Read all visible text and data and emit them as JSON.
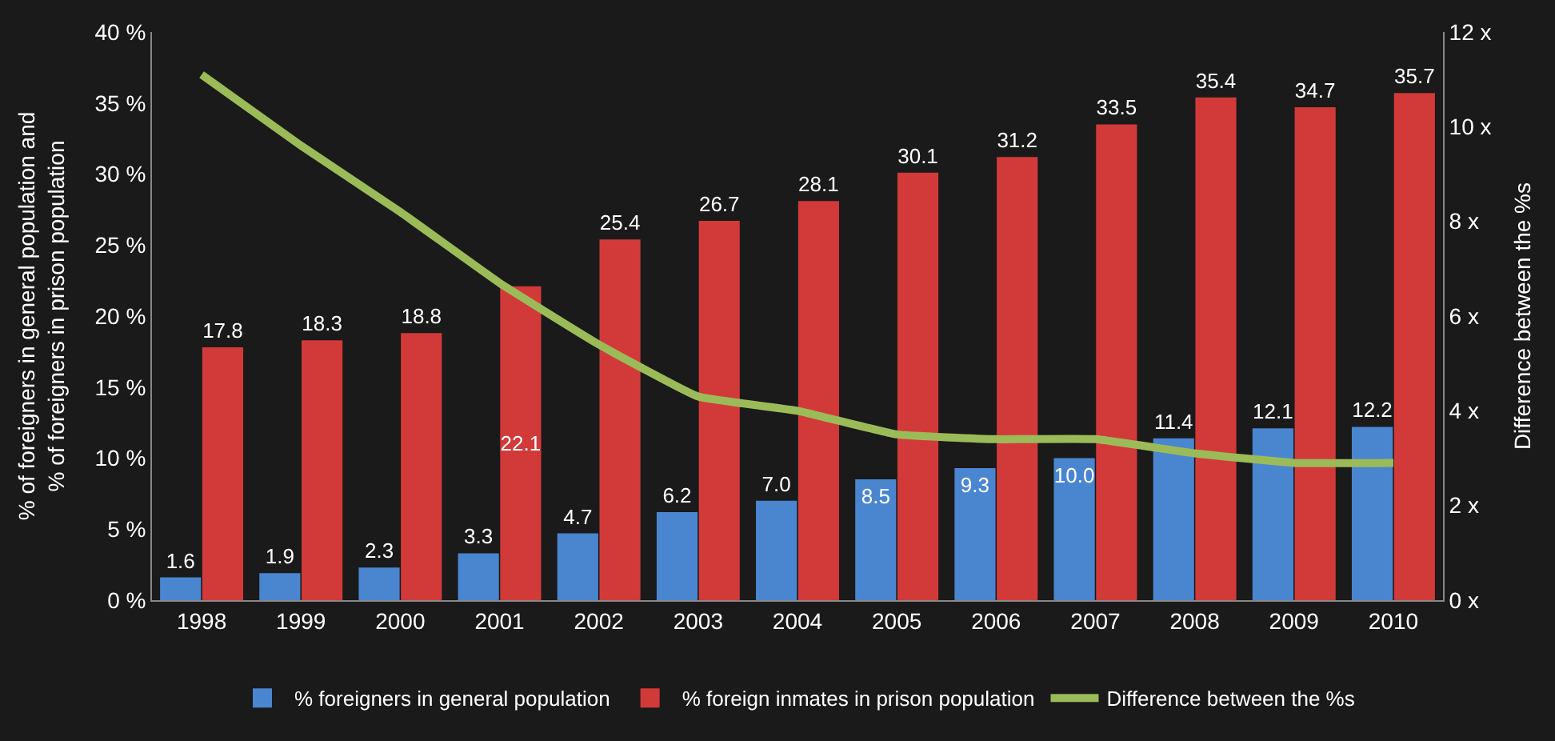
{
  "chart_data": {
    "type": "bar",
    "categories": [
      "1998",
      "1999",
      "2000",
      "2001",
      "2002",
      "2003",
      "2004",
      "2005",
      "2006",
      "2007",
      "2008",
      "2009",
      "2010"
    ],
    "ylabel": "% of foreigners in general population and\n% of foreigners in prison population",
    "y2label": "Difference between the %s",
    "ylim": [
      0,
      40
    ],
    "yticks": [
      {
        "value": 0,
        "label": "0 %"
      },
      {
        "value": 5,
        "label": "5 %"
      },
      {
        "value": 10,
        "label": "10 %"
      },
      {
        "value": 15,
        "label": "15 %"
      },
      {
        "value": 20,
        "label": "20 %"
      },
      {
        "value": 25,
        "label": "25 %"
      },
      {
        "value": 30,
        "label": "30 %"
      },
      {
        "value": 35,
        "label": "35 %"
      },
      {
        "value": 40,
        "label": "40 %"
      }
    ],
    "y2lim": [
      0,
      12
    ],
    "y2ticks": [
      {
        "value": 0,
        "label": "0 x"
      },
      {
        "value": 2,
        "label": "2 x"
      },
      {
        "value": 4,
        "label": "4 x"
      },
      {
        "value": 6,
        "label": "6 x"
      },
      {
        "value": 8,
        "label": "8 x"
      },
      {
        "value": 10,
        "label": "10 x"
      },
      {
        "value": 12,
        "label": "12 x"
      }
    ],
    "legend": "bottom",
    "grid": false,
    "series": [
      {
        "name": "% foreigners in general population",
        "color": "#4a86d0",
        "values": [
          1.6,
          1.9,
          2.3,
          3.3,
          4.7,
          6.2,
          7.0,
          8.5,
          9.3,
          10.0,
          11.4,
          12.1,
          12.2
        ],
        "value_labels": [
          "1.6",
          "1.9",
          "2.3",
          "3.3",
          "4.7",
          "6.2",
          "7.0",
          "8.5",
          "9.3",
          "10.0",
          "11.4",
          "12.1",
          "12.2"
        ]
      },
      {
        "name": "% foreign inmates in prison population",
        "color": "#d23a3a",
        "values": [
          17.8,
          18.3,
          18.8,
          22.1,
          25.4,
          26.7,
          28.1,
          30.1,
          31.2,
          33.5,
          35.4,
          34.7,
          35.7
        ],
        "value_labels": [
          "17.8",
          "18.3",
          "18.8",
          "22.1",
          "25.4",
          "26.7",
          "28.1",
          "30.1",
          "31.2",
          "33.5",
          "35.4",
          "34.7",
          "35.7"
        ]
      },
      {
        "name": "Difference between the %s",
        "type": "line",
        "axis": "y2",
        "color": "#9bbb59",
        "marker": "none",
        "values": [
          11.1,
          9.6,
          8.2,
          6.7,
          5.4,
          4.3,
          4.0,
          3.5,
          3.4,
          3.4,
          3.1,
          2.9,
          2.9
        ]
      }
    ]
  }
}
